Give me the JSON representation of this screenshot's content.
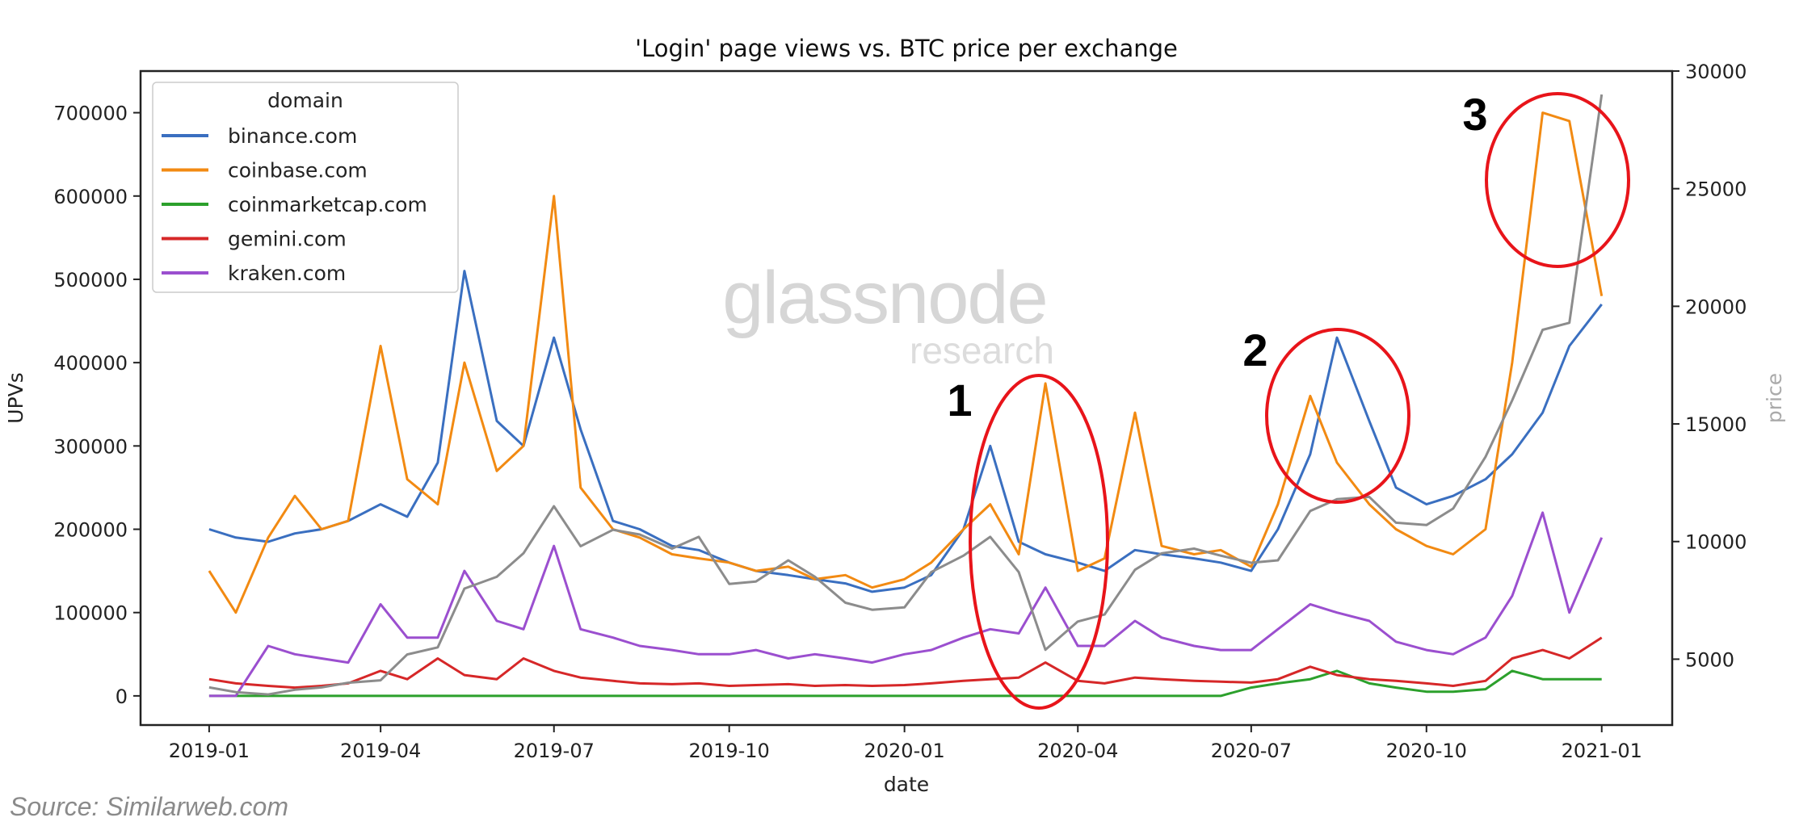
{
  "source": "Source: Similarweb.com",
  "watermark": {
    "main": "glassnode",
    "sub": "research"
  },
  "annotations": [
    "1",
    "2",
    "3"
  ],
  "chart_data": {
    "type": "line",
    "title": "'Login' page views vs. BTC price per exchange",
    "xlabel": "date",
    "ylabel": "UPVs",
    "y2label": "price",
    "legend_title": "domain",
    "legend_position": "top-left",
    "grid": false,
    "xlim": [
      "2018-11-26",
      "2021-02-07"
    ],
    "ylim": [
      -35000,
      750000
    ],
    "y2lim": [
      2200,
      30000
    ],
    "xticks": [
      "2019-01",
      "2019-04",
      "2019-07",
      "2019-10",
      "2020-01",
      "2020-04",
      "2020-07",
      "2020-10",
      "2021-01"
    ],
    "yticks": [
      0,
      100000,
      200000,
      300000,
      400000,
      500000,
      600000,
      700000
    ],
    "y2ticks": [
      5000,
      10000,
      15000,
      20000,
      25000,
      30000
    ],
    "x": [
      "2019-01-01",
      "2019-01-15",
      "2019-02-01",
      "2019-02-15",
      "2019-03-01",
      "2019-03-15",
      "2019-04-01",
      "2019-04-15",
      "2019-05-01",
      "2019-05-15",
      "2019-06-01",
      "2019-06-15",
      "2019-07-01",
      "2019-07-15",
      "2019-08-01",
      "2019-08-15",
      "2019-09-01",
      "2019-09-15",
      "2019-10-01",
      "2019-10-15",
      "2019-11-01",
      "2019-11-15",
      "2019-12-01",
      "2019-12-15",
      "2020-01-01",
      "2020-01-15",
      "2020-02-01",
      "2020-02-15",
      "2020-03-01",
      "2020-03-15",
      "2020-04-01",
      "2020-04-15",
      "2020-05-01",
      "2020-05-15",
      "2020-06-01",
      "2020-06-15",
      "2020-07-01",
      "2020-07-15",
      "2020-08-01",
      "2020-08-15",
      "2020-09-01",
      "2020-09-15",
      "2020-10-01",
      "2020-10-15",
      "2020-11-01",
      "2020-11-15",
      "2020-12-01",
      "2020-12-15",
      "2021-01-01"
    ],
    "series": [
      {
        "name": "binance.com",
        "color": "#3a6fc0",
        "axis": "left",
        "values": [
          200000,
          190000,
          185000,
          195000,
          200000,
          210000,
          230000,
          215000,
          280000,
          510000,
          330000,
          300000,
          430000,
          320000,
          210000,
          200000,
          180000,
          175000,
          160000,
          150000,
          145000,
          140000,
          135000,
          125000,
          130000,
          145000,
          200000,
          300000,
          185000,
          170000,
          160000,
          150000,
          175000,
          170000,
          165000,
          160000,
          150000,
          200000,
          290000,
          430000,
          330000,
          250000,
          230000,
          240000,
          260000,
          290000,
          340000,
          420000,
          470000
        ]
      },
      {
        "name": "coinbase.com",
        "color": "#f28a12",
        "axis": "left",
        "values": [
          150000,
          100000,
          190000,
          240000,
          200000,
          210000,
          420000,
          260000,
          230000,
          400000,
          270000,
          300000,
          600000,
          250000,
          200000,
          190000,
          170000,
          165000,
          160000,
          150000,
          155000,
          140000,
          145000,
          130000,
          140000,
          160000,
          200000,
          230000,
          170000,
          375000,
          150000,
          165000,
          340000,
          180000,
          170000,
          175000,
          155000,
          230000,
          360000,
          280000,
          230000,
          200000,
          180000,
          170000,
          200000,
          400000,
          700000,
          690000,
          480000
        ]
      },
      {
        "name": "coinmarketcap.com",
        "color": "#2ca02c",
        "axis": "left",
        "values": [
          0,
          0,
          0,
          0,
          0,
          0,
          0,
          0,
          0,
          0,
          0,
          0,
          0,
          0,
          0,
          0,
          0,
          0,
          0,
          0,
          0,
          0,
          0,
          0,
          0,
          0,
          0,
          0,
          0,
          0,
          0,
          0,
          0,
          0,
          0,
          0,
          10000,
          15000,
          20000,
          30000,
          15000,
          10000,
          5000,
          5000,
          8000,
          30000,
          20000,
          20000,
          20000
        ]
      },
      {
        "name": "gemini.com",
        "color": "#d62728",
        "axis": "left",
        "values": [
          20000,
          15000,
          12000,
          10000,
          12000,
          15000,
          30000,
          20000,
          45000,
          25000,
          20000,
          45000,
          30000,
          22000,
          18000,
          15000,
          14000,
          15000,
          12000,
          13000,
          14000,
          12000,
          13000,
          12000,
          13000,
          15000,
          18000,
          20000,
          22000,
          40000,
          18000,
          15000,
          22000,
          20000,
          18000,
          17000,
          16000,
          20000,
          35000,
          25000,
          20000,
          18000,
          15000,
          12000,
          18000,
          45000,
          55000,
          45000,
          70000
        ]
      },
      {
        "name": "kraken.com",
        "color": "#9b4fcf",
        "axis": "left",
        "values": [
          0,
          0,
          60000,
          50000,
          45000,
          40000,
          110000,
          70000,
          70000,
          150000,
          90000,
          80000,
          180000,
          80000,
          70000,
          60000,
          55000,
          50000,
          50000,
          55000,
          45000,
          50000,
          45000,
          40000,
          50000,
          55000,
          70000,
          80000,
          75000,
          130000,
          60000,
          60000,
          90000,
          70000,
          60000,
          55000,
          55000,
          80000,
          110000,
          100000,
          90000,
          65000,
          55000,
          50000,
          70000,
          120000,
          220000,
          100000,
          190000
        ]
      },
      {
        "name": "BTC price",
        "color": "#8c8c8c",
        "axis": "right",
        "in_legend": false,
        "values": [
          3800,
          3600,
          3500,
          3700,
          3800,
          4000,
          4100,
          5200,
          5500,
          8000,
          8500,
          9500,
          11500,
          9800,
          10500,
          10300,
          9700,
          10200,
          8200,
          8300,
          9200,
          8500,
          7400,
          7100,
          7200,
          8700,
          9400,
          10200,
          8700,
          5400,
          6600,
          6900,
          8800,
          9500,
          9700,
          9400,
          9100,
          9200,
          11300,
          11800,
          11900,
          10800,
          10700,
          11400,
          13600,
          16000,
          19000,
          19300,
          29000
        ]
      }
    ]
  }
}
